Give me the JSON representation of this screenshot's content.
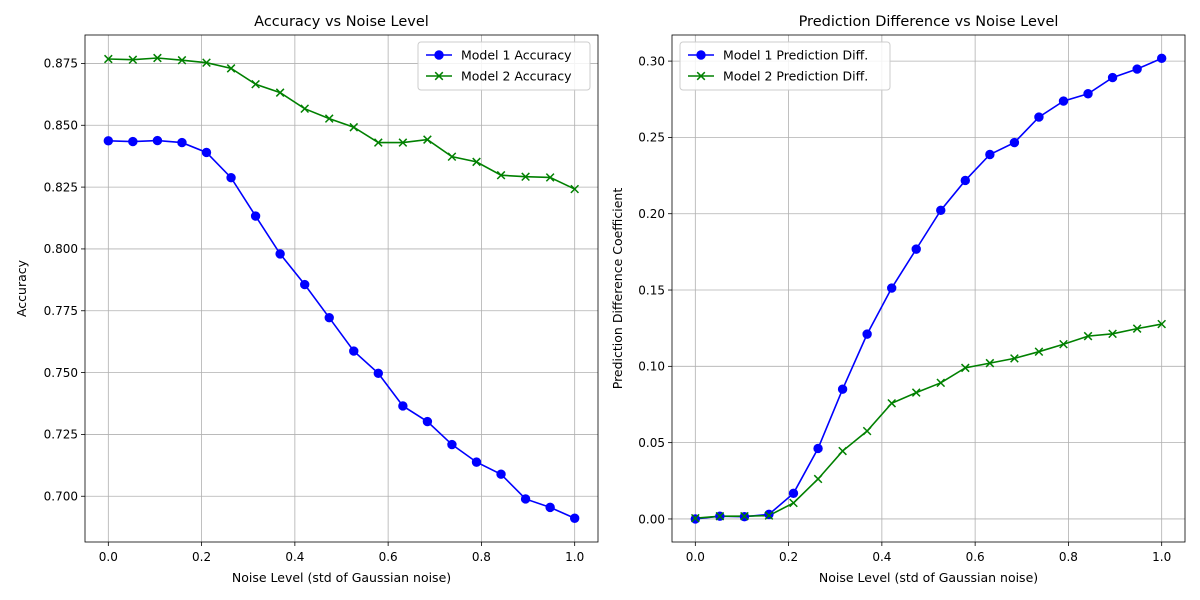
{
  "chart_data": [
    {
      "type": "line",
      "title": "Accuracy vs Noise Level",
      "xlabel": "Noise Level (std of Gaussian noise)",
      "ylabel": "Accuracy",
      "xlim": [
        -0.05,
        1.05
      ],
      "ylim": [
        0.6815,
        0.8865
      ],
      "xticks": [
        0.0,
        0.2,
        0.4,
        0.6,
        0.8,
        1.0
      ],
      "xtick_labels": [
        "0.0",
        "0.2",
        "0.4",
        "0.6",
        "0.8",
        "1.0"
      ],
      "yticks": [
        0.7,
        0.725,
        0.75,
        0.775,
        0.8,
        0.825,
        0.85,
        0.875
      ],
      "ytick_labels": [
        "0.700",
        "0.725",
        "0.750",
        "0.775",
        "0.800",
        "0.825",
        "0.850",
        "0.875"
      ],
      "grid": true,
      "legend_position": "top-right",
      "x": [
        0.0,
        0.0526,
        0.1053,
        0.1579,
        0.2105,
        0.2632,
        0.3158,
        0.3684,
        0.4211,
        0.4737,
        0.5263,
        0.5789,
        0.6316,
        0.6842,
        0.7368,
        0.7895,
        0.8421,
        0.8947,
        0.9474,
        1.0
      ],
      "series": [
        {
          "name": "Model 1 Accuracy",
          "color": "#0000ff",
          "marker": "circle",
          "values": [
            0.8437,
            0.8434,
            0.8438,
            0.843,
            0.839,
            0.8288,
            0.8133,
            0.798,
            0.7856,
            0.7722,
            0.7587,
            0.7497,
            0.7365,
            0.7302,
            0.7209,
            0.7138,
            0.7089,
            0.6989,
            0.6955,
            0.6911
          ]
        },
        {
          "name": "Model 2 Accuracy",
          "color": "#008000",
          "marker": "x",
          "values": [
            0.8768,
            0.8765,
            0.8772,
            0.8763,
            0.8753,
            0.873,
            0.8666,
            0.8632,
            0.8567,
            0.8527,
            0.8492,
            0.843,
            0.843,
            0.8442,
            0.8373,
            0.8352,
            0.8298,
            0.8292,
            0.8289,
            0.8242
          ]
        }
      ]
    },
    {
      "type": "line",
      "title": "Prediction Difference vs Noise Level",
      "xlabel": "Noise Level (std of Gaussian noise)",
      "ylabel": "Prediction Difference Coefficient",
      "xlim": [
        -0.05,
        1.05
      ],
      "ylim": [
        -0.0151,
        0.3171
      ],
      "xticks": [
        0.0,
        0.2,
        0.4,
        0.6,
        0.8,
        1.0
      ],
      "xtick_labels": [
        "0.0",
        "0.2",
        "0.4",
        "0.6",
        "0.8",
        "1.0"
      ],
      "yticks": [
        0.0,
        0.05,
        0.1,
        0.15,
        0.2,
        0.25,
        0.3
      ],
      "ytick_labels": [
        "0.00",
        "0.05",
        "0.10",
        "0.15",
        "0.20",
        "0.25",
        "0.30"
      ],
      "grid": true,
      "legend_position": "top-left",
      "x": [
        0.0,
        0.0526,
        0.1053,
        0.1579,
        0.2105,
        0.2632,
        0.3158,
        0.3684,
        0.4211,
        0.4737,
        0.5263,
        0.5789,
        0.6316,
        0.6842,
        0.7368,
        0.7895,
        0.8421,
        0.8947,
        0.9474,
        1.0
      ],
      "series": [
        {
          "name": "Model 1 Prediction Diff.",
          "color": "#0000ff",
          "marker": "circle",
          "values": [
            0.0,
            0.0018,
            0.0015,
            0.003,
            0.0168,
            0.0462,
            0.085,
            0.1211,
            0.1513,
            0.1768,
            0.2022,
            0.2218,
            0.2388,
            0.2466,
            0.2633,
            0.2738,
            0.2786,
            0.2892,
            0.2948,
            0.3018
          ]
        },
        {
          "name": "Model 2 Prediction Diff.",
          "color": "#008000",
          "marker": "x",
          "values": [
            0.0005,
            0.0018,
            0.0018,
            0.0022,
            0.0105,
            0.0262,
            0.0445,
            0.0576,
            0.0758,
            0.0828,
            0.0892,
            0.099,
            0.1021,
            0.1052,
            0.1096,
            0.1145,
            0.1198,
            0.1213,
            0.1247,
            0.1277
          ]
        }
      ]
    }
  ]
}
